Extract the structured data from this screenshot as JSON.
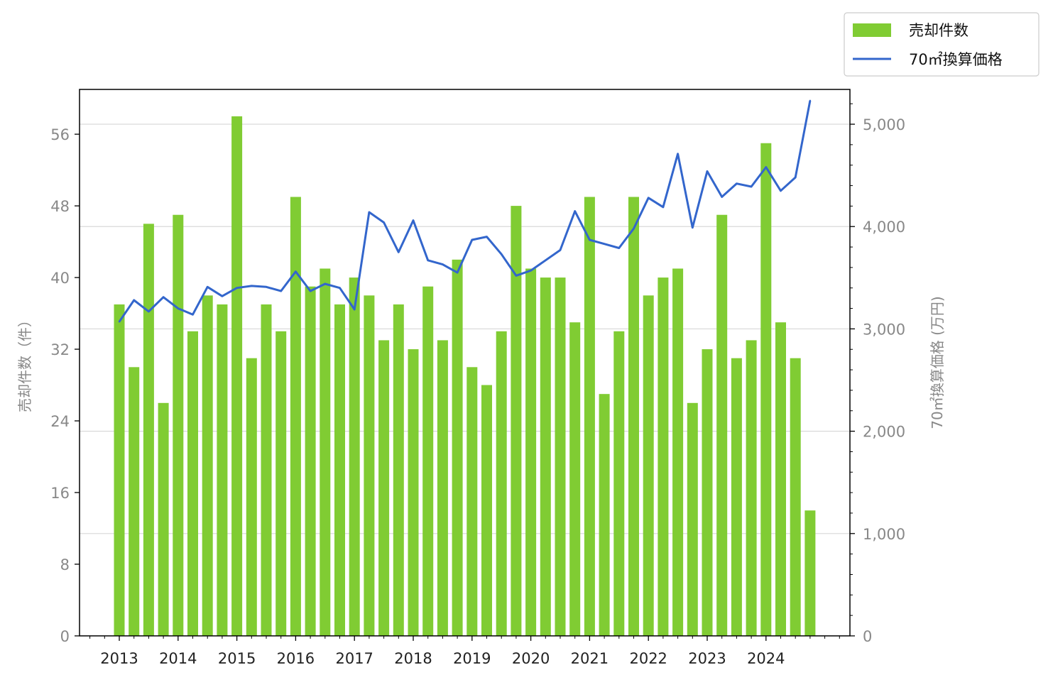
{
  "chart_data": {
    "type": "bar+line",
    "x_tick_labels": [
      "2013",
      "2014",
      "2015",
      "2016",
      "2017",
      "2018",
      "2019",
      "2020",
      "2021",
      "2022",
      "2023",
      "2024"
    ],
    "quarters": [
      "2013Q1",
      "2013Q2",
      "2013Q3",
      "2013Q4",
      "2014Q1",
      "2014Q2",
      "2014Q3",
      "2014Q4",
      "2015Q1",
      "2015Q2",
      "2015Q3",
      "2015Q4",
      "2016Q1",
      "2016Q2",
      "2016Q3",
      "2016Q4",
      "2017Q1",
      "2017Q2",
      "2017Q3",
      "2017Q4",
      "2018Q1",
      "2018Q2",
      "2018Q3",
      "2018Q4",
      "2019Q1",
      "2019Q2",
      "2019Q3",
      "2019Q4",
      "2020Q1",
      "2020Q2",
      "2020Q3",
      "2020Q4",
      "2021Q1",
      "2021Q2",
      "2021Q3",
      "2021Q4",
      "2022Q1",
      "2022Q2",
      "2022Q3",
      "2022Q4",
      "2023Q1",
      "2023Q2",
      "2023Q3",
      "2023Q4",
      "2024Q1",
      "2024Q2",
      "2024Q3",
      "2024Q4"
    ],
    "series": [
      {
        "name": "売却件数",
        "type": "bar",
        "axis": "left",
        "color": "#80cc33",
        "values": [
          37,
          30,
          46,
          26,
          47,
          34,
          38,
          37,
          58,
          31,
          37,
          34,
          49,
          39,
          41,
          37,
          40,
          38,
          33,
          37,
          32,
          39,
          33,
          42,
          30,
          28,
          34,
          48,
          41,
          40,
          40,
          35,
          49,
          27,
          34,
          49,
          38,
          40,
          41,
          26,
          32,
          47,
          31,
          33,
          55,
          35,
          31,
          14
        ]
      },
      {
        "name": "70㎡換算価格",
        "type": "line",
        "axis": "right",
        "color": "#3366cc",
        "values": [
          3070,
          3280,
          3170,
          3310,
          3200,
          3140,
          3410,
          3320,
          3400,
          3420,
          3410,
          3370,
          3560,
          3370,
          3440,
          3400,
          3190,
          4140,
          4040,
          3750,
          4060,
          3670,
          3630,
          3550,
          3870,
          3900,
          3730,
          3520,
          3570,
          3670,
          3770,
          4150,
          3870,
          3830,
          3790,
          3980,
          4280,
          4190,
          4710,
          3990,
          4540,
          4290,
          4420,
          4390,
          4580,
          4350,
          4480,
          5230
        ]
      }
    ],
    "y_left": {
      "label": "売却件数（件）",
      "lim": [
        0,
        61
      ],
      "ticks": [
        0,
        8,
        16,
        24,
        32,
        40,
        48,
        56
      ],
      "tick_labels": [
        "0",
        "8",
        "16",
        "24",
        "32",
        "40",
        "48",
        "56"
      ]
    },
    "y_right": {
      "label": "70㎡換算価格 (万円)",
      "lim": [
        0,
        5340
      ],
      "ticks": [
        0,
        1000,
        2000,
        3000,
        4000,
        5000
      ],
      "tick_labels": [
        "0",
        "1,000",
        "2,000",
        "3,000",
        "4,000",
        "5,000"
      ]
    },
    "grid": "horizontal (right axis)",
    "legend_placement": "top-right"
  }
}
